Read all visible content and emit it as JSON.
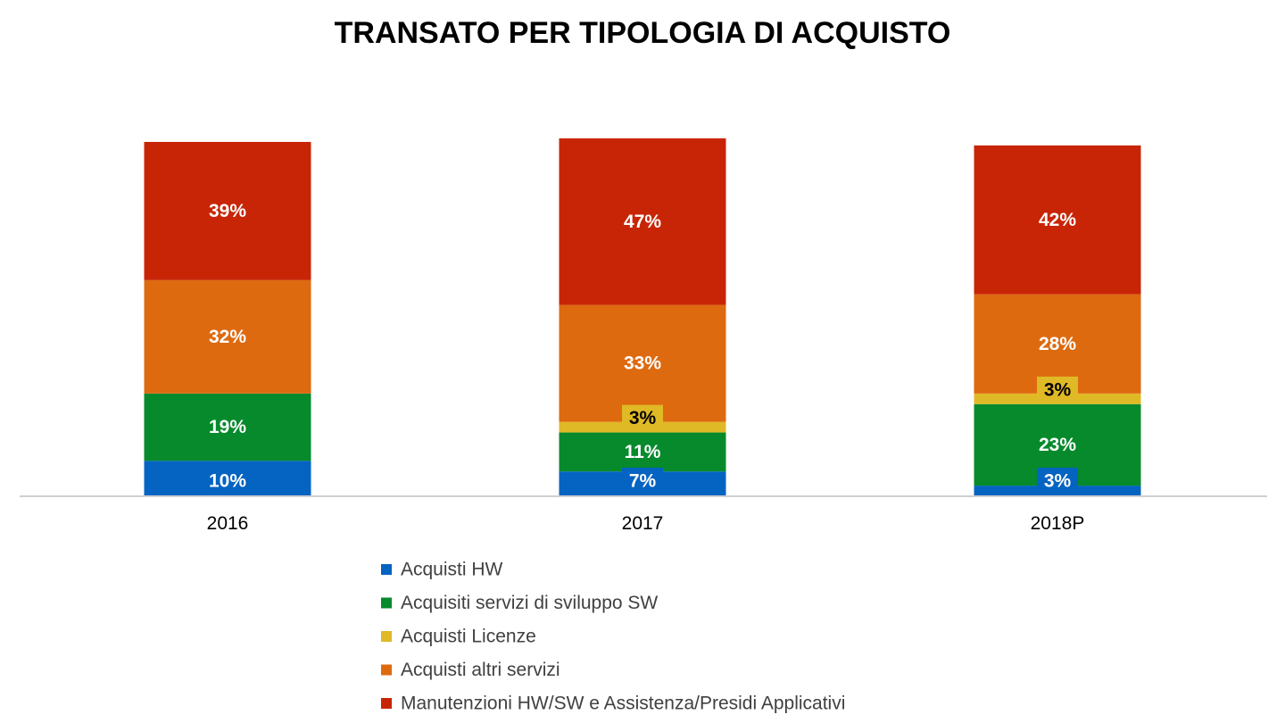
{
  "chart_data": {
    "type": "bar",
    "stacked": true,
    "title": "TRANSATO PER TIPOLOGIA DI ACQUISTO",
    "xlabel": "",
    "ylabel": "",
    "categories": [
      "2016",
      "2017",
      "2018P"
    ],
    "grid": false,
    "legend_position": "bottom",
    "series": [
      {
        "name": "Acquisti HW",
        "color": "#0563C1",
        "values": [
          10,
          7,
          3
        ],
        "labels": [
          "10%",
          "7%",
          "3%"
        ]
      },
      {
        "name": "Acquisiti servizi di sviluppo SW",
        "color": "#068A2C",
        "values": [
          19,
          11,
          23
        ],
        "labels": [
          "19%",
          "11%",
          "23%"
        ]
      },
      {
        "name": "Acquisti Licenze",
        "color": "#E0B926",
        "values": [
          0,
          3,
          3
        ],
        "labels": [
          "",
          "3%",
          "3%"
        ]
      },
      {
        "name": "Acquisti altri servizi",
        "color": "#DE6A10",
        "values": [
          32,
          33,
          28
        ],
        "labels": [
          "32%",
          "33%",
          "28%"
        ]
      },
      {
        "name": "Manutenzioni HW/SW e Assistenza/Presidi Applicativi",
        "color": "#C82506",
        "values": [
          39,
          47,
          42
        ],
        "labels": [
          "39%",
          "47%",
          "42%"
        ]
      }
    ]
  }
}
